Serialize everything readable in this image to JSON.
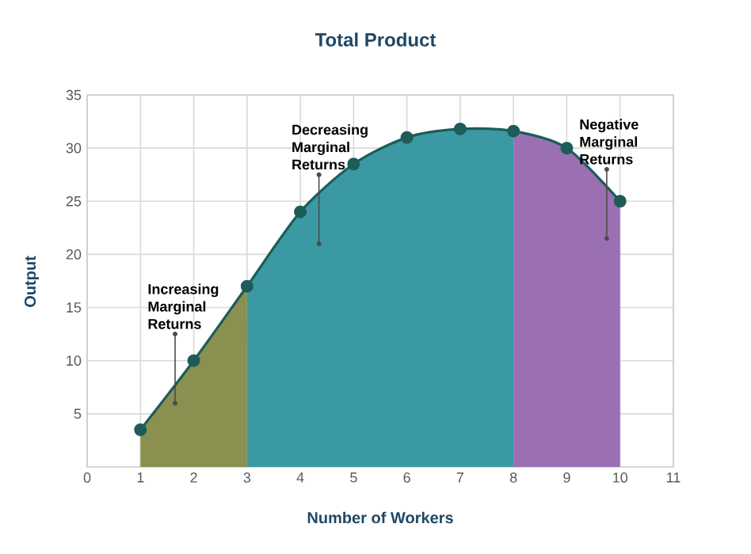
{
  "chart_data": {
    "type": "line",
    "title": "Total Product",
    "xlabel": "Number of Workers",
    "ylabel": "Output",
    "series": [
      {
        "type": "area",
        "color": "#8a904f",
        "x": [
          1,
          2,
          3
        ],
        "values": [
          3.5,
          10,
          17
        ]
      },
      {
        "type": "area",
        "color": "#3a99a2",
        "x": [
          3,
          4,
          5,
          6,
          7,
          8
        ],
        "values": [
          17,
          24,
          28.5,
          31,
          31.8,
          31.6
        ]
      },
      {
        "type": "area",
        "color": "#9a70b3",
        "x": [
          8,
          9,
          10
        ],
        "values": [
          31.6,
          30,
          25
        ]
      },
      {
        "color": "#1d5c58",
        "x": [
          1,
          2,
          3,
          4,
          5,
          6,
          7,
          8,
          9,
          10
        ],
        "values": [
          3.5,
          10,
          17,
          24,
          28.5,
          31,
          31.8,
          31.6,
          30,
          25
        ],
        "marker": "circle"
      }
    ],
    "xlim": [
      0,
      11
    ],
    "ylim": [
      0,
      35
    ],
    "xticks": [
      0,
      1,
      2,
      3,
      4,
      5,
      6,
      7,
      8,
      9,
      10,
      11
    ],
    "yticks": [
      5,
      10,
      15,
      20,
      25,
      30,
      35
    ],
    "grid": true,
    "annotations": [
      {
        "text": "Increasing Marginal Returns",
        "x": 1.65,
        "y": 6
      },
      {
        "text": "Decreasing Marginal Returns",
        "x": 4.35,
        "y": 21
      },
      {
        "text": "Negative Marginal Returns",
        "x": 9.75,
        "y": 21.5
      }
    ]
  }
}
